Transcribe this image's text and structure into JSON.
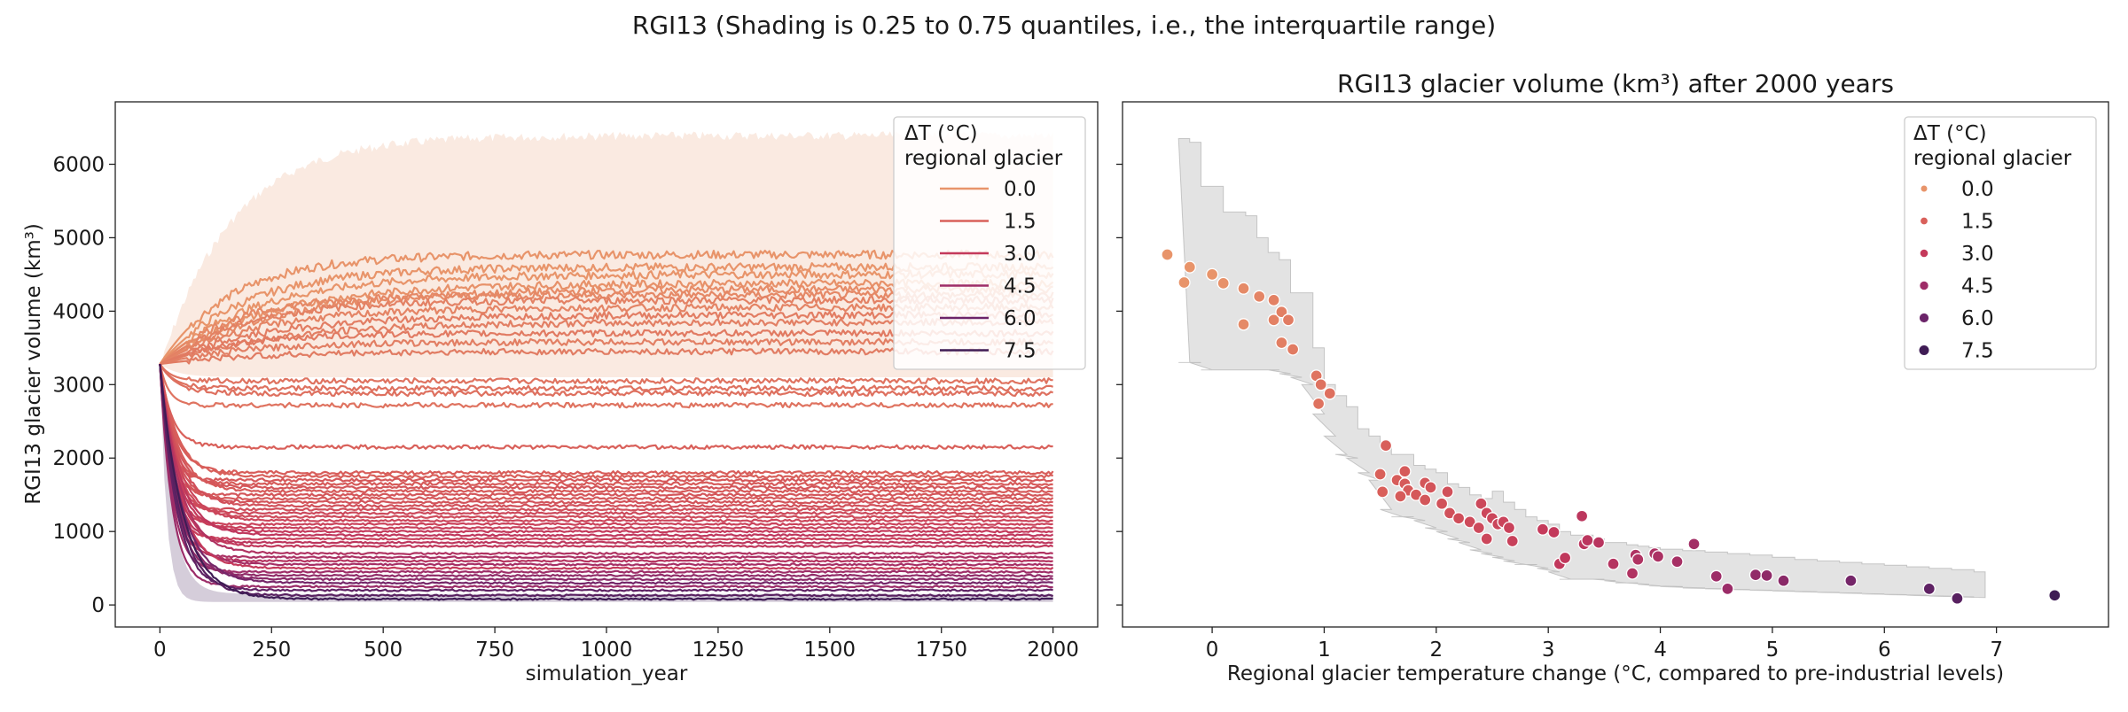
{
  "figure": {
    "suptitle": "RGI13 (Shading is 0.25 to 0.75 quantiles, i.e., the interquartile range)"
  },
  "legend_palette": [
    {
      "label": "0.0",
      "color": "#e8946a"
    },
    {
      "label": "1.5",
      "color": "#d9605a"
    },
    {
      "label": "3.0",
      "color": "#c4395b"
    },
    {
      "label": "4.5",
      "color": "#9e2d68"
    },
    {
      "label": "6.0",
      "color": "#6b2469"
    },
    {
      "label": "7.5",
      "color": "#3f1c55"
    }
  ],
  "chart_data": [
    {
      "type": "line",
      "title": "",
      "xlabel": "simulation_year",
      "ylabel": "RGI13 glacier volume (km³)",
      "xlim": [
        -100,
        2100
      ],
      "ylim": [
        -300,
        6850
      ],
      "xticks": [
        0,
        250,
        500,
        750,
        1000,
        1250,
        1500,
        1750,
        2000
      ],
      "yticks": [
        0,
        1000,
        2000,
        3000,
        4000,
        5000,
        6000
      ],
      "grid": false,
      "legend": {
        "title_line1": "ΔT (°C)",
        "title_line2": "regional glacier",
        "placement": "upper right"
      },
      "initial_volume": 3280,
      "iqr_bands": [
        {
          "name": "0.0",
          "lower": 3280,
          "upper_final": 6450,
          "color": "#e8946a"
        },
        {
          "name": "7.5",
          "lower": 40,
          "upper_final": 150,
          "color": "#3f1c55"
        }
      ],
      "series_final_volumes": [
        {
          "dt": -0.4,
          "v": 4770
        },
        {
          "dt": -0.2,
          "v": 4600
        },
        {
          "dt": 0.0,
          "v": 4500
        },
        {
          "dt": 0.1,
          "v": 4380
        },
        {
          "dt": 0.25,
          "v": 4300
        },
        {
          "dt": 0.35,
          "v": 4220
        },
        {
          "dt": 0.55,
          "v": 4150
        },
        {
          "dt": 0.45,
          "v": 4050
        },
        {
          "dt": 0.65,
          "v": 3950
        },
        {
          "dt": 0.6,
          "v": 3850
        },
        {
          "dt": 0.75,
          "v": 3700
        },
        {
          "dt": 0.6,
          "v": 3580
        },
        {
          "dt": 0.7,
          "v": 3450
        },
        {
          "dt": 0.95,
          "v": 3050
        },
        {
          "dt": 1.0,
          "v": 2950
        },
        {
          "dt": 1.05,
          "v": 2880
        },
        {
          "dt": 0.95,
          "v": 2720
        },
        {
          "dt": 1.5,
          "v": 2150
        },
        {
          "dt": 1.6,
          "v": 1800
        },
        {
          "dt": 1.55,
          "v": 1750
        },
        {
          "dt": 1.8,
          "v": 1700
        },
        {
          "dt": 1.7,
          "v": 1650
        },
        {
          "dt": 1.9,
          "v": 1600
        },
        {
          "dt": 1.75,
          "v": 1550
        },
        {
          "dt": 1.9,
          "v": 1500
        },
        {
          "dt": 1.8,
          "v": 1450
        },
        {
          "dt": 2.0,
          "v": 1400
        },
        {
          "dt": 2.1,
          "v": 1350
        },
        {
          "dt": 2.2,
          "v": 1300
        },
        {
          "dt": 2.4,
          "v": 1250
        },
        {
          "dt": 2.3,
          "v": 1200
        },
        {
          "dt": 2.5,
          "v": 1150
        },
        {
          "dt": 2.6,
          "v": 1100
        },
        {
          "dt": 2.7,
          "v": 1050
        },
        {
          "dt": 3.0,
          "v": 1000
        },
        {
          "dt": 3.2,
          "v": 950
        },
        {
          "dt": 2.8,
          "v": 900
        },
        {
          "dt": 3.3,
          "v": 850
        },
        {
          "dt": 3.1,
          "v": 800
        },
        {
          "dt": 3.8,
          "v": 700
        },
        {
          "dt": 4.0,
          "v": 650
        },
        {
          "dt": 3.6,
          "v": 600
        },
        {
          "dt": 4.2,
          "v": 550
        },
        {
          "dt": 3.0,
          "v": 500
        },
        {
          "dt": 4.5,
          "v": 450
        },
        {
          "dt": 4.9,
          "v": 400
        },
        {
          "dt": 5.1,
          "v": 350
        },
        {
          "dt": 5.7,
          "v": 300
        },
        {
          "dt": 4.6,
          "v": 250
        },
        {
          "dt": 6.4,
          "v": 200
        },
        {
          "dt": 6.6,
          "v": 130
        },
        {
          "dt": 7.5,
          "v": 80
        }
      ]
    },
    {
      "type": "scatter",
      "title": "RGI13 glacier volume (km³) after 2000 years",
      "xlabel": "Regional glacier temperature change (°C, compared to pre-industrial levels)",
      "ylabel": "",
      "xlim": [
        -0.8,
        8.0
      ],
      "ylim": [
        -300,
        6850
      ],
      "xticks": [
        0,
        1,
        2,
        3,
        4,
        5,
        6,
        7
      ],
      "yticks": [
        0,
        1000,
        2000,
        3000,
        4000,
        5000,
        6000
      ],
      "grid": false,
      "legend": {
        "title_line1": "ΔT (°C)",
        "title_line2": "regional glacier",
        "placement": "upper right"
      },
      "points": [
        {
          "x": -0.4,
          "y": 4770
        },
        {
          "x": -0.2,
          "y": 4600
        },
        {
          "x": -0.25,
          "y": 4390
        },
        {
          "x": 0.0,
          "y": 4500
        },
        {
          "x": 0.1,
          "y": 4380
        },
        {
          "x": 0.28,
          "y": 4310
        },
        {
          "x": 0.28,
          "y": 3820
        },
        {
          "x": 0.42,
          "y": 4200
        },
        {
          "x": 0.55,
          "y": 4150
        },
        {
          "x": 0.55,
          "y": 3880
        },
        {
          "x": 0.62,
          "y": 3990
        },
        {
          "x": 0.68,
          "y": 3880
        },
        {
          "x": 0.62,
          "y": 3570
        },
        {
          "x": 0.72,
          "y": 3480
        },
        {
          "x": 0.93,
          "y": 3120
        },
        {
          "x": 0.97,
          "y": 3000
        },
        {
          "x": 1.05,
          "y": 2880
        },
        {
          "x": 0.95,
          "y": 2740
        },
        {
          "x": 1.55,
          "y": 2170
        },
        {
          "x": 1.5,
          "y": 1780
        },
        {
          "x": 1.52,
          "y": 1540
        },
        {
          "x": 1.65,
          "y": 1700
        },
        {
          "x": 1.72,
          "y": 1820
        },
        {
          "x": 1.72,
          "y": 1650
        },
        {
          "x": 1.75,
          "y": 1560
        },
        {
          "x": 1.68,
          "y": 1480
        },
        {
          "x": 1.82,
          "y": 1500
        },
        {
          "x": 1.9,
          "y": 1430
        },
        {
          "x": 1.9,
          "y": 1660
        },
        {
          "x": 1.95,
          "y": 1600
        },
        {
          "x": 2.05,
          "y": 1380
        },
        {
          "x": 2.1,
          "y": 1540
        },
        {
          "x": 2.12,
          "y": 1250
        },
        {
          "x": 2.2,
          "y": 1180
        },
        {
          "x": 2.3,
          "y": 1130
        },
        {
          "x": 2.38,
          "y": 1050
        },
        {
          "x": 2.4,
          "y": 1380
        },
        {
          "x": 2.45,
          "y": 1250
        },
        {
          "x": 2.5,
          "y": 1180
        },
        {
          "x": 2.45,
          "y": 900
        },
        {
          "x": 2.55,
          "y": 1100
        },
        {
          "x": 2.6,
          "y": 1130
        },
        {
          "x": 2.65,
          "y": 1050
        },
        {
          "x": 2.68,
          "y": 870
        },
        {
          "x": 2.95,
          "y": 1030
        },
        {
          "x": 3.05,
          "y": 990
        },
        {
          "x": 3.1,
          "y": 560
        },
        {
          "x": 3.15,
          "y": 640
        },
        {
          "x": 3.3,
          "y": 1210
        },
        {
          "x": 3.32,
          "y": 830
        },
        {
          "x": 3.35,
          "y": 880
        },
        {
          "x": 3.45,
          "y": 850
        },
        {
          "x": 3.58,
          "y": 560
        },
        {
          "x": 3.75,
          "y": 430
        },
        {
          "x": 3.78,
          "y": 680
        },
        {
          "x": 3.8,
          "y": 620
        },
        {
          "x": 3.95,
          "y": 700
        },
        {
          "x": 3.98,
          "y": 660
        },
        {
          "x": 4.15,
          "y": 590
        },
        {
          "x": 4.3,
          "y": 830
        },
        {
          "x": 4.5,
          "y": 390
        },
        {
          "x": 4.6,
          "y": 220
        },
        {
          "x": 4.85,
          "y": 410
        },
        {
          "x": 4.95,
          "y": 400
        },
        {
          "x": 5.1,
          "y": 330
        },
        {
          "x": 5.7,
          "y": 330
        },
        {
          "x": 6.4,
          "y": 220
        },
        {
          "x": 6.65,
          "y": 90
        },
        {
          "x": 7.52,
          "y": 130
        }
      ],
      "iqr_band_steps": [
        {
          "x": -0.3,
          "lo": 3300,
          "hi": 6350
        },
        {
          "x": -0.2,
          "lo": 3300,
          "hi": 6300
        },
        {
          "x": -0.1,
          "lo": 3200,
          "hi": 5700
        },
        {
          "x": 0.0,
          "lo": 3200,
          "hi": 5700
        },
        {
          "x": 0.1,
          "lo": 3200,
          "hi": 5350
        },
        {
          "x": 0.2,
          "lo": 3200,
          "hi": 5350
        },
        {
          "x": 0.3,
          "lo": 3200,
          "hi": 5300
        },
        {
          "x": 0.4,
          "lo": 3200,
          "hi": 5000
        },
        {
          "x": 0.5,
          "lo": 3200,
          "hi": 4800
        },
        {
          "x": 0.6,
          "lo": 3150,
          "hi": 4700
        },
        {
          "x": 0.7,
          "lo": 3100,
          "hi": 4250
        },
        {
          "x": 0.8,
          "lo": 3000,
          "hi": 4250
        },
        {
          "x": 0.9,
          "lo": 2600,
          "hi": 3500
        },
        {
          "x": 1.0,
          "lo": 2300,
          "hi": 3000
        },
        {
          "x": 1.1,
          "lo": 2050,
          "hi": 2850
        },
        {
          "x": 1.2,
          "lo": 2000,
          "hi": 2700
        },
        {
          "x": 1.3,
          "lo": 1800,
          "hi": 2400
        },
        {
          "x": 1.4,
          "lo": 1700,
          "hi": 2300
        },
        {
          "x": 1.5,
          "lo": 1300,
          "hi": 2150
        },
        {
          "x": 1.6,
          "lo": 1200,
          "hi": 2050
        },
        {
          "x": 1.7,
          "lo": 1200,
          "hi": 2050
        },
        {
          "x": 1.8,
          "lo": 1150,
          "hi": 1900
        },
        {
          "x": 1.9,
          "lo": 1050,
          "hi": 1850
        },
        {
          "x": 2.0,
          "lo": 1000,
          "hi": 1800
        },
        {
          "x": 2.1,
          "lo": 900,
          "hi": 1650
        },
        {
          "x": 2.2,
          "lo": 850,
          "hi": 1600
        },
        {
          "x": 2.3,
          "lo": 750,
          "hi": 1500
        },
        {
          "x": 2.4,
          "lo": 700,
          "hi": 1450
        },
        {
          "x": 2.5,
          "lo": 650,
          "hi": 1550
        },
        {
          "x": 2.6,
          "lo": 600,
          "hi": 1400
        },
        {
          "x": 2.7,
          "lo": 550,
          "hi": 1300
        },
        {
          "x": 2.8,
          "lo": 550,
          "hi": 1200
        },
        {
          "x": 2.9,
          "lo": 500,
          "hi": 1150
        },
        {
          "x": 3.0,
          "lo": 450,
          "hi": 1100
        },
        {
          "x": 3.1,
          "lo": 350,
          "hi": 1000
        },
        {
          "x": 3.2,
          "lo": 350,
          "hi": 950
        },
        {
          "x": 3.3,
          "lo": 350,
          "hi": 950
        },
        {
          "x": 3.4,
          "lo": 350,
          "hi": 900
        },
        {
          "x": 3.5,
          "lo": 330,
          "hi": 850
        },
        {
          "x": 3.6,
          "lo": 300,
          "hi": 850
        },
        {
          "x": 3.7,
          "lo": 300,
          "hi": 820
        },
        {
          "x": 3.8,
          "lo": 280,
          "hi": 800
        },
        {
          "x": 3.9,
          "lo": 260,
          "hi": 780
        },
        {
          "x": 4.0,
          "lo": 250,
          "hi": 760
        },
        {
          "x": 4.2,
          "lo": 230,
          "hi": 740
        },
        {
          "x": 4.4,
          "lo": 220,
          "hi": 720
        },
        {
          "x": 4.6,
          "lo": 210,
          "hi": 700
        },
        {
          "x": 4.8,
          "lo": 200,
          "hi": 680
        },
        {
          "x": 5.0,
          "lo": 190,
          "hi": 650
        },
        {
          "x": 5.2,
          "lo": 180,
          "hi": 620
        },
        {
          "x": 5.4,
          "lo": 170,
          "hi": 600
        },
        {
          "x": 5.6,
          "lo": 160,
          "hi": 580
        },
        {
          "x": 5.8,
          "lo": 150,
          "hi": 560
        },
        {
          "x": 6.0,
          "lo": 140,
          "hi": 540
        },
        {
          "x": 6.2,
          "lo": 130,
          "hi": 520
        },
        {
          "x": 6.4,
          "lo": 120,
          "hi": 500
        },
        {
          "x": 6.6,
          "lo": 110,
          "hi": 480
        },
        {
          "x": 6.8,
          "lo": 100,
          "hi": 450
        },
        {
          "x": 6.9,
          "lo": 100,
          "hi": 450
        }
      ]
    }
  ]
}
